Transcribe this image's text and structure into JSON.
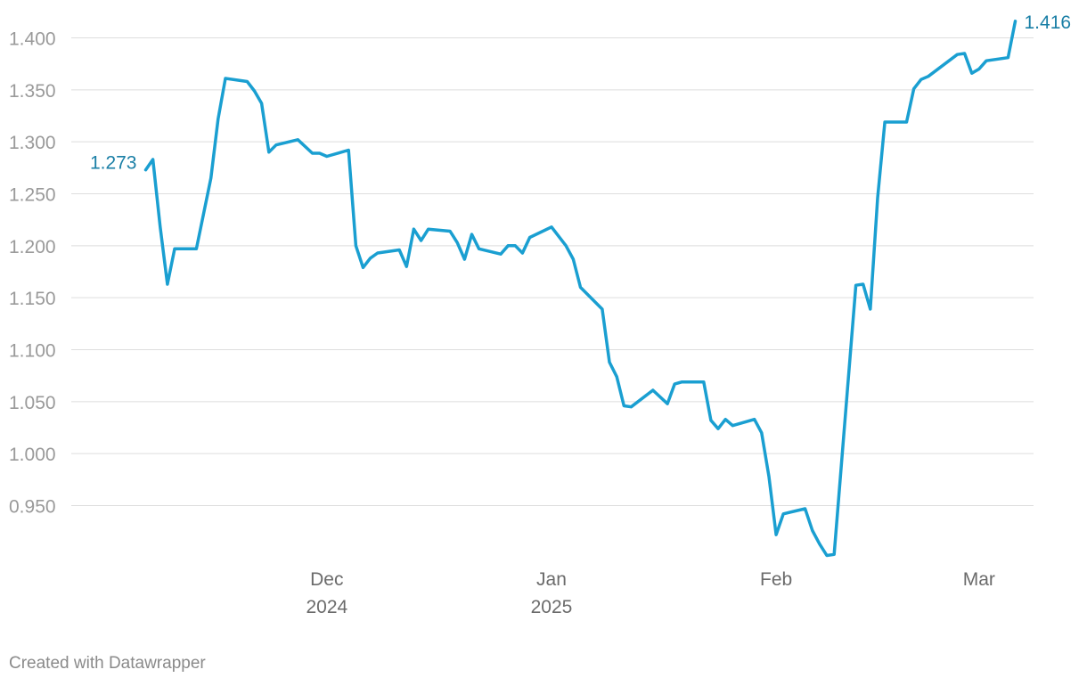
{
  "chart_data": {
    "type": "line",
    "title": "",
    "xlabel": "",
    "ylabel": "",
    "x_range": [
      "2024-11-06",
      "2025-03-04"
    ],
    "ylim": [
      0.9,
      1.42
    ],
    "yticks": [
      "1.400",
      "1.350",
      "1.300",
      "1.250",
      "1.200",
      "1.150",
      "1.100",
      "1.050",
      "1.000",
      "0.950"
    ],
    "ytick_values": [
      1.4,
      1.35,
      1.3,
      1.25,
      1.2,
      1.15,
      1.1,
      1.05,
      1.0,
      0.95
    ],
    "xticks": [
      {
        "date": "2024-12-01",
        "line1": "Dec",
        "line2": "2024"
      },
      {
        "date": "2025-01-01",
        "line1": "Jan",
        "line2": "2025"
      },
      {
        "date": "2025-02-01",
        "line1": "Feb",
        "line2": ""
      },
      {
        "date": "2025-03-01",
        "line1": "Mar",
        "line2": ""
      }
    ],
    "grid": true,
    "series": [
      {
        "color": "#1a9fd1",
        "start_label": "1.273",
        "end_label": "1.416",
        "points": [
          [
            "2024-11-06",
            1.273
          ],
          [
            "2024-11-07",
            1.283
          ],
          [
            "2024-11-08",
            1.218
          ],
          [
            "2024-11-09",
            1.163
          ],
          [
            "2024-11-10",
            1.197
          ],
          [
            "2024-11-13",
            1.197
          ],
          [
            "2024-11-15",
            1.265
          ],
          [
            "2024-11-16",
            1.322
          ],
          [
            "2024-11-17",
            1.361
          ],
          [
            "2024-11-20",
            1.358
          ],
          [
            "2024-11-21",
            1.349
          ],
          [
            "2024-11-22",
            1.337
          ],
          [
            "2024-11-23",
            1.29
          ],
          [
            "2024-11-24",
            1.297
          ],
          [
            "2024-11-27",
            1.302
          ],
          [
            "2024-11-29",
            1.289
          ],
          [
            "2024-11-30",
            1.289
          ],
          [
            "2024-12-01",
            1.286
          ],
          [
            "2024-12-04",
            1.292
          ],
          [
            "2024-12-05",
            1.2
          ],
          [
            "2024-12-06",
            1.179
          ],
          [
            "2024-12-07",
            1.188
          ],
          [
            "2024-12-08",
            1.193
          ],
          [
            "2024-12-11",
            1.196
          ],
          [
            "2024-12-12",
            1.18
          ],
          [
            "2024-12-13",
            1.216
          ],
          [
            "2024-12-14",
            1.205
          ],
          [
            "2024-12-15",
            1.216
          ],
          [
            "2024-12-18",
            1.214
          ],
          [
            "2024-12-19",
            1.203
          ],
          [
            "2024-12-20",
            1.187
          ],
          [
            "2024-12-21",
            1.211
          ],
          [
            "2024-12-22",
            1.197
          ],
          [
            "2024-12-25",
            1.192
          ],
          [
            "2024-12-26",
            1.2
          ],
          [
            "2024-12-27",
            1.2
          ],
          [
            "2024-12-28",
            1.193
          ],
          [
            "2024-12-29",
            1.208
          ],
          [
            "2025-01-01",
            1.218
          ],
          [
            "2025-01-03",
            1.2
          ],
          [
            "2025-01-04",
            1.187
          ],
          [
            "2025-01-05",
            1.16
          ],
          [
            "2025-01-08",
            1.139
          ],
          [
            "2025-01-09",
            1.088
          ],
          [
            "2025-01-10",
            1.074
          ],
          [
            "2025-01-11",
            1.046
          ],
          [
            "2025-01-12",
            1.045
          ],
          [
            "2025-01-15",
            1.061
          ],
          [
            "2025-01-17",
            1.048
          ],
          [
            "2025-01-18",
            1.067
          ],
          [
            "2025-01-19",
            1.069
          ],
          [
            "2025-01-22",
            1.069
          ],
          [
            "2025-01-23",
            1.032
          ],
          [
            "2025-01-24",
            1.024
          ],
          [
            "2025-01-25",
            1.033
          ],
          [
            "2025-01-26",
            1.027
          ],
          [
            "2025-01-29",
            1.033
          ],
          [
            "2025-01-30",
            1.02
          ],
          [
            "2025-01-31",
            0.978
          ],
          [
            "2025-02-01",
            0.922
          ],
          [
            "2025-02-02",
            0.942
          ],
          [
            "2025-02-05",
            0.947
          ],
          [
            "2025-02-06",
            0.926
          ],
          [
            "2025-02-07",
            0.913
          ],
          [
            "2025-02-08",
            0.902
          ],
          [
            "2025-02-09",
            0.903
          ],
          [
            "2025-02-12",
            1.162
          ],
          [
            "2025-02-13",
            1.163
          ],
          [
            "2025-02-14",
            1.139
          ],
          [
            "2025-02-15",
            1.246
          ],
          [
            "2025-02-16",
            1.319
          ],
          [
            "2025-02-19",
            1.319
          ],
          [
            "2025-02-20",
            1.351
          ],
          [
            "2025-02-21",
            1.36
          ],
          [
            "2025-02-22",
            1.363
          ],
          [
            "2025-02-26",
            1.384
          ],
          [
            "2025-02-27",
            1.385
          ],
          [
            "2025-02-28",
            1.366
          ],
          [
            "2025-03-01",
            1.37
          ],
          [
            "2025-03-02",
            1.378
          ],
          [
            "2025-03-05",
            1.381
          ],
          [
            "2025-03-06",
            1.416
          ]
        ]
      }
    ]
  },
  "footer": {
    "credit": "Created with Datawrapper"
  }
}
